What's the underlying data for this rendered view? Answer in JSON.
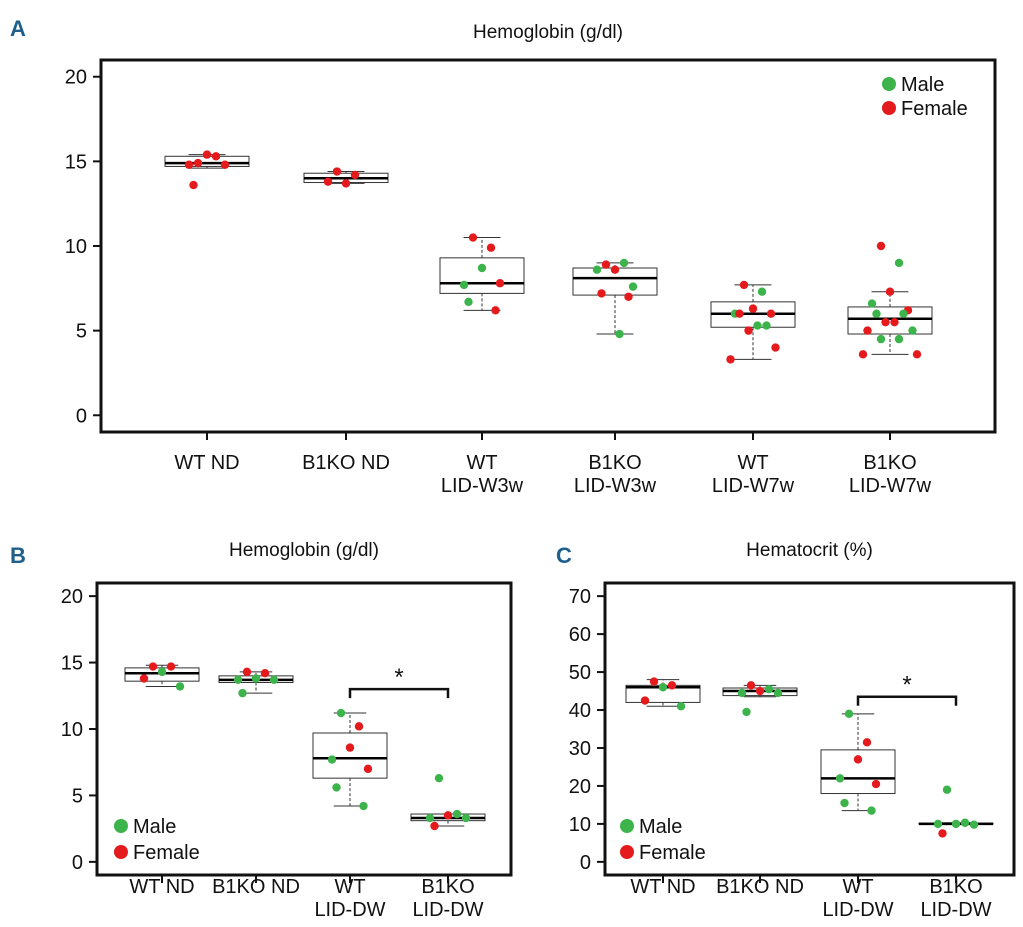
{
  "colors": {
    "male": "#3cb44b",
    "female": "#e41a1c",
    "letter": "#1f5f8b"
  },
  "chart_data": [
    {
      "panel": "A",
      "type": "box",
      "title": "Hemoglobin (g/dl)",
      "xlabel": "",
      "ylabel": "",
      "ylim": [
        0,
        20
      ],
      "yticks": [
        0,
        5,
        10,
        15,
        20
      ],
      "legend": {
        "position": "top-right",
        "entries": [
          "Male",
          "Female"
        ]
      },
      "groups": [
        {
          "label": [
            "WT ND"
          ],
          "box": {
            "min": 14.6,
            "q1": 14.7,
            "median": 14.9,
            "q3": 15.3,
            "max": 15.4
          },
          "points": [
            {
              "y": 14.9,
              "sex": "female"
            },
            {
              "y": 15.3,
              "sex": "female"
            },
            {
              "y": 15.4,
              "sex": "female"
            },
            {
              "y": 14.8,
              "sex": "female"
            },
            {
              "y": 14.8,
              "sex": "female"
            },
            {
              "y": 13.6,
              "sex": "female"
            }
          ]
        },
        {
          "label": [
            "B1KO ND"
          ],
          "box": {
            "min": 13.7,
            "q1": 13.75,
            "median": 14.0,
            "q3": 14.3,
            "max": 14.4
          },
          "points": [
            {
              "y": 14.4,
              "sex": "female"
            },
            {
              "y": 14.2,
              "sex": "female"
            },
            {
              "y": 13.7,
              "sex": "female"
            },
            {
              "y": 13.8,
              "sex": "female"
            }
          ]
        },
        {
          "label": [
            "WT",
            "LID-W3w"
          ],
          "box": {
            "min": 6.2,
            "q1": 7.2,
            "median": 7.8,
            "q3": 9.3,
            "max": 10.5
          },
          "points": [
            {
              "y": 10.5,
              "sex": "female"
            },
            {
              "y": 9.9,
              "sex": "female"
            },
            {
              "y": 8.7,
              "sex": "male"
            },
            {
              "y": 7.7,
              "sex": "male"
            },
            {
              "y": 7.8,
              "sex": "female"
            },
            {
              "y": 6.7,
              "sex": "male"
            },
            {
              "y": 6.2,
              "sex": "female"
            }
          ]
        },
        {
          "label": [
            "B1KO",
            "LID-W3w"
          ],
          "box": {
            "min": 4.8,
            "q1": 7.1,
            "median": 8.1,
            "q3": 8.7,
            "max": 9.0
          },
          "points": [
            {
              "y": 8.9,
              "sex": "female"
            },
            {
              "y": 9.0,
              "sex": "male"
            },
            {
              "y": 8.6,
              "sex": "female"
            },
            {
              "y": 8.6,
              "sex": "male"
            },
            {
              "y": 7.6,
              "sex": "male"
            },
            {
              "y": 7.2,
              "sex": "female"
            },
            {
              "y": 7.0,
              "sex": "female"
            },
            {
              "y": 4.8,
              "sex": "male"
            }
          ]
        },
        {
          "label": [
            "WT",
            "LID-W7w"
          ],
          "box": {
            "min": 3.3,
            "q1": 5.2,
            "median": 6.0,
            "q3": 6.7,
            "max": 7.7
          },
          "points": [
            {
              "y": 7.7,
              "sex": "female"
            },
            {
              "y": 7.3,
              "sex": "male"
            },
            {
              "y": 6.3,
              "sex": "female"
            },
            {
              "y": 6.0,
              "sex": "male"
            },
            {
              "y": 6.0,
              "sex": "female"
            },
            {
              "y": 6.0,
              "sex": "female"
            },
            {
              "y": 5.3,
              "sex": "male"
            },
            {
              "y": 5.3,
              "sex": "male"
            },
            {
              "y": 5.0,
              "sex": "female"
            },
            {
              "y": 4.0,
              "sex": "female"
            },
            {
              "y": 3.3,
              "sex": "female"
            }
          ]
        },
        {
          "label": [
            "B1KO",
            "LID-W7w"
          ],
          "box": {
            "min": 3.6,
            "q1": 4.8,
            "median": 5.7,
            "q3": 6.4,
            "max": 7.3
          },
          "points": [
            {
              "y": 10.0,
              "sex": "female"
            },
            {
              "y": 9.0,
              "sex": "male"
            },
            {
              "y": 7.3,
              "sex": "female"
            },
            {
              "y": 6.6,
              "sex": "male"
            },
            {
              "y": 6.2,
              "sex": "female"
            },
            {
              "y": 6.0,
              "sex": "male"
            },
            {
              "y": 6.0,
              "sex": "male"
            },
            {
              "y": 5.5,
              "sex": "female"
            },
            {
              "y": 5.5,
              "sex": "female"
            },
            {
              "y": 5.0,
              "sex": "male"
            },
            {
              "y": 5.0,
              "sex": "female"
            },
            {
              "y": 4.5,
              "sex": "male"
            },
            {
              "y": 4.5,
              "sex": "male"
            },
            {
              "y": 3.6,
              "sex": "female"
            },
            {
              "y": 3.6,
              "sex": "female"
            }
          ]
        }
      ]
    },
    {
      "panel": "B",
      "type": "box",
      "title": "Hemoglobin (g/dl)",
      "xlabel": "",
      "ylabel": "",
      "ylim": [
        0,
        20
      ],
      "yticks": [
        0,
        5,
        10,
        15,
        20
      ],
      "legend": {
        "position": "bottom-left",
        "entries": [
          "Male",
          "Female"
        ]
      },
      "annotation": {
        "text": "*",
        "from": 2,
        "to": 3,
        "y": 13.0
      },
      "groups": [
        {
          "label": [
            "WT ND"
          ],
          "box": {
            "min": 13.2,
            "q1": 13.6,
            "median": 14.2,
            "q3": 14.6,
            "max": 14.8
          },
          "points": [
            {
              "y": 14.7,
              "sex": "female"
            },
            {
              "y": 14.7,
              "sex": "female"
            },
            {
              "y": 14.3,
              "sex": "male"
            },
            {
              "y": 13.8,
              "sex": "female"
            },
            {
              "y": 13.2,
              "sex": "male"
            }
          ]
        },
        {
          "label": [
            "B1KO ND"
          ],
          "box": {
            "min": 12.7,
            "q1": 13.5,
            "median": 13.7,
            "q3": 14.0,
            "max": 14.3
          },
          "points": [
            {
              "y": 14.3,
              "sex": "female"
            },
            {
              "y": 14.2,
              "sex": "female"
            },
            {
              "y": 13.8,
              "sex": "male"
            },
            {
              "y": 13.7,
              "sex": "male"
            },
            {
              "y": 13.7,
              "sex": "male"
            },
            {
              "y": 12.7,
              "sex": "male"
            }
          ]
        },
        {
          "label": [
            "WT",
            "LID-DW"
          ],
          "box": {
            "min": 4.2,
            "q1": 6.3,
            "median": 7.8,
            "q3": 9.7,
            "max": 11.2
          },
          "points": [
            {
              "y": 11.2,
              "sex": "male"
            },
            {
              "y": 10.2,
              "sex": "female"
            },
            {
              "y": 8.6,
              "sex": "female"
            },
            {
              "y": 7.7,
              "sex": "male"
            },
            {
              "y": 7.0,
              "sex": "female"
            },
            {
              "y": 5.6,
              "sex": "male"
            },
            {
              "y": 4.2,
              "sex": "male"
            }
          ]
        },
        {
          "label": [
            "B1KO",
            "LID-DW"
          ],
          "box": {
            "min": 2.7,
            "q1": 3.1,
            "median": 3.3,
            "q3": 3.6,
            "max": 3.6
          },
          "points": [
            {
              "y": 6.3,
              "sex": "male"
            },
            {
              "y": 3.6,
              "sex": "male"
            },
            {
              "y": 3.5,
              "sex": "female"
            },
            {
              "y": 3.3,
              "sex": "male"
            },
            {
              "y": 3.3,
              "sex": "male"
            },
            {
              "y": 2.7,
              "sex": "female"
            }
          ]
        }
      ]
    },
    {
      "panel": "C",
      "type": "box",
      "title": "Hematocrit (%)",
      "xlabel": "",
      "ylabel": "",
      "ylim": [
        0,
        70
      ],
      "yticks": [
        0,
        10,
        20,
        30,
        40,
        50,
        60,
        70
      ],
      "legend": {
        "position": "bottom-left",
        "entries": [
          "Male",
          "Female"
        ]
      },
      "annotation": {
        "text": "*",
        "from": 2,
        "to": 3,
        "y": 43.5
      },
      "groups": [
        {
          "label": [
            "WT ND"
          ],
          "box": {
            "min": 41.0,
            "q1": 42.0,
            "median": 46.0,
            "q3": 46.5,
            "max": 48.0
          },
          "points": [
            {
              "y": 47.5,
              "sex": "female"
            },
            {
              "y": 46.5,
              "sex": "female"
            },
            {
              "y": 46.0,
              "sex": "male"
            },
            {
              "y": 42.5,
              "sex": "female"
            },
            {
              "y": 41.0,
              "sex": "male"
            }
          ]
        },
        {
          "label": [
            "B1KO ND"
          ],
          "box": {
            "min": 43.5,
            "q1": 43.8,
            "median": 45.0,
            "q3": 45.8,
            "max": 46.5
          },
          "points": [
            {
              "y": 46.5,
              "sex": "female"
            },
            {
              "y": 45.5,
              "sex": "male"
            },
            {
              "y": 45.0,
              "sex": "female"
            },
            {
              "y": 44.5,
              "sex": "male"
            },
            {
              "y": 44.5,
              "sex": "male"
            },
            {
              "y": 39.5,
              "sex": "male"
            }
          ]
        },
        {
          "label": [
            "WT",
            "LID-DW"
          ],
          "box": {
            "min": 13.5,
            "q1": 18.0,
            "median": 22.0,
            "q3": 29.5,
            "max": 39.0
          },
          "points": [
            {
              "y": 39.0,
              "sex": "male"
            },
            {
              "y": 31.5,
              "sex": "female"
            },
            {
              "y": 27.0,
              "sex": "female"
            },
            {
              "y": 22.0,
              "sex": "male"
            },
            {
              "y": 20.5,
              "sex": "female"
            },
            {
              "y": 15.5,
              "sex": "male"
            },
            {
              "y": 13.5,
              "sex": "male"
            }
          ]
        },
        {
          "label": [
            "B1KO",
            "LID-DW"
          ],
          "box": {
            "min": 10.0,
            "q1": 10.0,
            "median": 10.0,
            "q3": 10.2,
            "max": 10.3
          },
          "points": [
            {
              "y": 19.0,
              "sex": "male"
            },
            {
              "y": 10.3,
              "sex": "male"
            },
            {
              "y": 10.0,
              "sex": "male"
            },
            {
              "y": 10.0,
              "sex": "male"
            },
            {
              "y": 9.8,
              "sex": "male"
            },
            {
              "y": 7.5,
              "sex": "female"
            }
          ]
        }
      ]
    }
  ]
}
